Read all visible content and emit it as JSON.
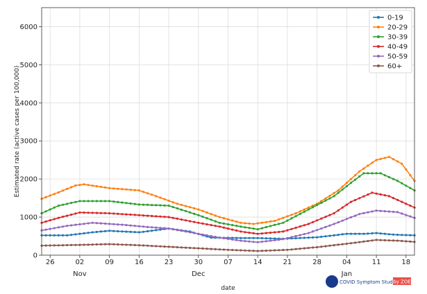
{
  "chart_data": {
    "type": "line",
    "xlabel": "date",
    "ylabel": "Estimated rate (active cases per 100,000)",
    "ylim": [
      0,
      6500
    ],
    "xlim": [
      "2020-10-24",
      "2021-01-20"
    ],
    "grid": true,
    "legend_position": "top-right",
    "y_ticks": [
      0,
      1000,
      2000,
      3000,
      4000,
      5000,
      6000
    ],
    "x_ticks": [
      {
        "date": "2020-10-26",
        "label": "26"
      },
      {
        "date": "2020-11-02",
        "label": "02"
      },
      {
        "date": "2020-11-09",
        "label": "09"
      },
      {
        "date": "2020-11-16",
        "label": "16"
      },
      {
        "date": "2020-11-23",
        "label": "23"
      },
      {
        "date": "2020-11-30",
        "label": "30"
      },
      {
        "date": "2020-12-07",
        "label": "07"
      },
      {
        "date": "2020-12-14",
        "label": "14"
      },
      {
        "date": "2020-12-21",
        "label": "21"
      },
      {
        "date": "2020-12-28",
        "label": "28"
      },
      {
        "date": "2021-01-04",
        "label": "04"
      },
      {
        "date": "2021-01-11",
        "label": "11"
      },
      {
        "date": "2021-01-18",
        "label": "18"
      }
    ],
    "month_labels": [
      {
        "date": "2020-11-02",
        "label": "Nov"
      },
      {
        "date": "2020-11-30",
        "label": "Dec"
      },
      {
        "date": "2021-01-04",
        "label": "Jan"
      }
    ],
    "series": [
      {
        "name": "0-19",
        "color": "#1f77b4",
        "points": [
          [
            "2020-10-24",
            520
          ],
          [
            "2020-10-30",
            520
          ],
          [
            "2020-11-05",
            600
          ],
          [
            "2020-11-09",
            640
          ],
          [
            "2020-11-16",
            600
          ],
          [
            "2020-11-23",
            700
          ],
          [
            "2020-11-28",
            620
          ],
          [
            "2020-12-03",
            460
          ],
          [
            "2020-12-10",
            450
          ],
          [
            "2020-12-14",
            450
          ],
          [
            "2020-12-20",
            430
          ],
          [
            "2020-12-28",
            470
          ],
          [
            "2021-01-04",
            560
          ],
          [
            "2021-01-08",
            560
          ],
          [
            "2021-01-11",
            580
          ],
          [
            "2021-01-15",
            540
          ],
          [
            "2021-01-20",
            520
          ]
        ]
      },
      {
        "name": "20-29",
        "color": "#ff7f0e",
        "points": [
          [
            "2020-10-24",
            1480
          ],
          [
            "2020-10-28",
            1650
          ],
          [
            "2020-11-01",
            1830
          ],
          [
            "2020-11-03",
            1860
          ],
          [
            "2020-11-09",
            1760
          ],
          [
            "2020-11-16",
            1700
          ],
          [
            "2020-11-20",
            1550
          ],
          [
            "2020-11-25",
            1350
          ],
          [
            "2020-11-30",
            1200
          ],
          [
            "2020-12-05",
            1000
          ],
          [
            "2020-12-10",
            850
          ],
          [
            "2020-12-13",
            820
          ],
          [
            "2020-12-18",
            900
          ],
          [
            "2020-12-23",
            1100
          ],
          [
            "2020-12-28",
            1350
          ],
          [
            "2021-01-02",
            1700
          ],
          [
            "2021-01-07",
            2200
          ],
          [
            "2021-01-11",
            2500
          ],
          [
            "2021-01-14",
            2580
          ],
          [
            "2021-01-17",
            2400
          ],
          [
            "2021-01-20",
            1950
          ]
        ]
      },
      {
        "name": "30-39",
        "color": "#2ca02c",
        "points": [
          [
            "2020-10-24",
            1100
          ],
          [
            "2020-10-28",
            1300
          ],
          [
            "2020-11-02",
            1420
          ],
          [
            "2020-11-09",
            1420
          ],
          [
            "2020-11-16",
            1330
          ],
          [
            "2020-11-23",
            1300
          ],
          [
            "2020-11-30",
            1050
          ],
          [
            "2020-12-05",
            850
          ],
          [
            "2020-12-10",
            750
          ],
          [
            "2020-12-14",
            680
          ],
          [
            "2020-12-20",
            850
          ],
          [
            "2020-12-26",
            1200
          ],
          [
            "2021-01-01",
            1550
          ],
          [
            "2021-01-05",
            1900
          ],
          [
            "2021-01-08",
            2150
          ],
          [
            "2021-01-12",
            2150
          ],
          [
            "2021-01-16",
            1950
          ],
          [
            "2021-01-20",
            1700
          ]
        ]
      },
      {
        "name": "40-49",
        "color": "#d62728",
        "points": [
          [
            "2020-10-24",
            850
          ],
          [
            "2020-10-28",
            980
          ],
          [
            "2020-11-02",
            1120
          ],
          [
            "2020-11-09",
            1100
          ],
          [
            "2020-11-16",
            1050
          ],
          [
            "2020-11-23",
            1000
          ],
          [
            "2020-11-30",
            850
          ],
          [
            "2020-12-05",
            750
          ],
          [
            "2020-12-10",
            620
          ],
          [
            "2020-12-14",
            560
          ],
          [
            "2020-12-20",
            620
          ],
          [
            "2020-12-26",
            820
          ],
          [
            "2021-01-01",
            1100
          ],
          [
            "2021-01-05",
            1400
          ],
          [
            "2021-01-10",
            1640
          ],
          [
            "2021-01-14",
            1550
          ],
          [
            "2021-01-20",
            1250
          ]
        ]
      },
      {
        "name": "50-59",
        "color": "#9467bd",
        "points": [
          [
            "2020-10-24",
            650
          ],
          [
            "2020-10-30",
            770
          ],
          [
            "2020-11-05",
            850
          ],
          [
            "2020-11-12",
            800
          ],
          [
            "2020-11-18",
            740
          ],
          [
            "2020-11-23",
            700
          ],
          [
            "2020-11-30",
            560
          ],
          [
            "2020-12-05",
            460
          ],
          [
            "2020-12-10",
            380
          ],
          [
            "2020-12-14",
            340
          ],
          [
            "2020-12-20",
            420
          ],
          [
            "2020-12-26",
            580
          ],
          [
            "2021-01-01",
            820
          ],
          [
            "2021-01-07",
            1080
          ],
          [
            "2021-01-11",
            1170
          ],
          [
            "2021-01-16",
            1130
          ],
          [
            "2021-01-20",
            980
          ]
        ]
      },
      {
        "name": "60+",
        "color": "#8c564b",
        "points": [
          [
            "2020-10-24",
            250
          ],
          [
            "2020-11-02",
            270
          ],
          [
            "2020-11-09",
            290
          ],
          [
            "2020-11-16",
            260
          ],
          [
            "2020-11-23",
            220
          ],
          [
            "2020-11-30",
            180
          ],
          [
            "2020-12-07",
            140
          ],
          [
            "2020-12-14",
            110
          ],
          [
            "2020-12-21",
            140
          ],
          [
            "2020-12-28",
            210
          ],
          [
            "2021-01-04",
            300
          ],
          [
            "2021-01-11",
            400
          ],
          [
            "2021-01-16",
            380
          ],
          [
            "2021-01-20",
            350
          ]
        ]
      }
    ]
  },
  "watermark": {
    "brand": "COVID Symptom Study",
    "partner": "by ZOE",
    "brand_color": "#1a3a8c",
    "partner_color": "#e8504a"
  }
}
